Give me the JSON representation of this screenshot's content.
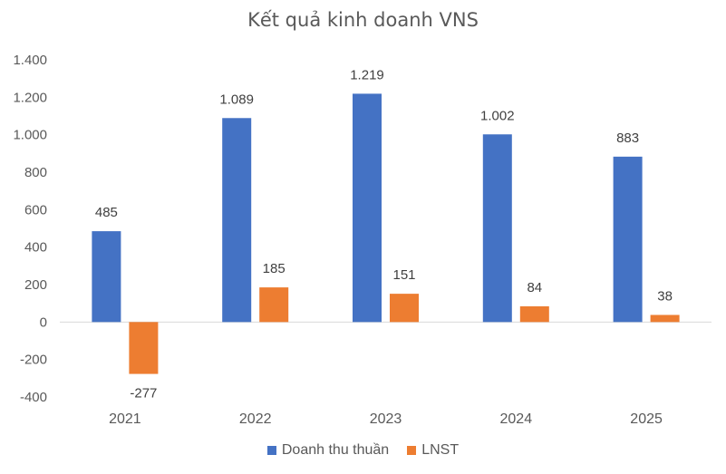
{
  "chart_data": {
    "type": "bar",
    "title": "Kết quả kinh doanh VNS",
    "categories": [
      "2021",
      "2022",
      "2023",
      "2024",
      "2025"
    ],
    "series": [
      {
        "name": "Doanh thu thuần",
        "values": [
          485,
          1089,
          1219,
          1002,
          883
        ],
        "labels": [
          "485",
          "1.089",
          "1.219",
          "1.002",
          "883"
        ],
        "color": "#4472C4"
      },
      {
        "name": "LNST",
        "values": [
          -277,
          185,
          151,
          84,
          38
        ],
        "labels": [
          "-277",
          "185",
          "151",
          "84",
          "38"
        ],
        "color": "#ED7D31"
      }
    ],
    "ylim": [
      -400,
      1400
    ],
    "yticks": [
      -400,
      -200,
      0,
      200,
      400,
      600,
      800,
      1000,
      1200,
      1400
    ],
    "ytick_labels": [
      "-400",
      "-200",
      "0",
      "200",
      "400",
      "600",
      "800",
      "1.000",
      "1.200",
      "1.400"
    ],
    "grid": false,
    "legend": "bottom"
  }
}
